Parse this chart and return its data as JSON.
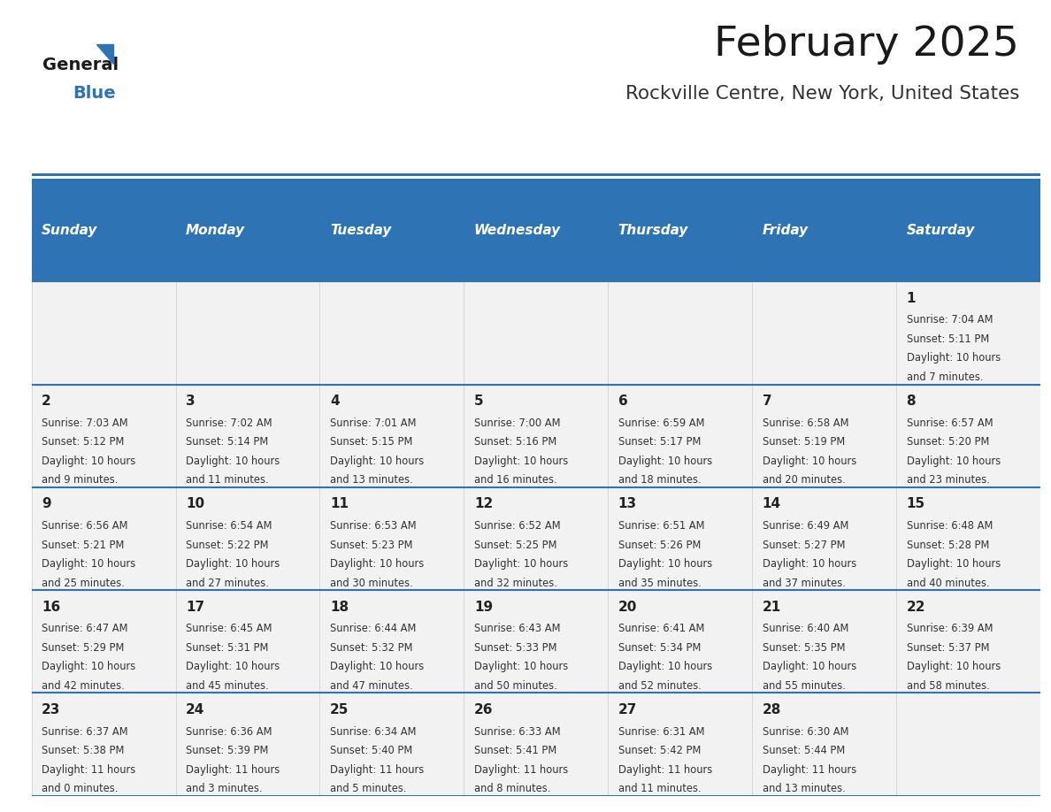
{
  "title": "February 2025",
  "subtitle": "Rockville Centre, New York, United States",
  "days_of_week": [
    "Sunday",
    "Monday",
    "Tuesday",
    "Wednesday",
    "Thursday",
    "Friday",
    "Saturday"
  ],
  "header_bg": "#2E74B5",
  "header_text": "#FFFFFF",
  "cell_bg_light": "#F2F2F2",
  "divider_color": "#2E74B5",
  "grid_line_color": "#CCCCCC",
  "text_color": "#333333",
  "weeks": [
    [
      {
        "day": null
      },
      {
        "day": null
      },
      {
        "day": null
      },
      {
        "day": null
      },
      {
        "day": null
      },
      {
        "day": null
      },
      {
        "day": 1,
        "sunrise": "7:04 AM",
        "sunset": "5:11 PM",
        "daylight": "10 hours and 7 minutes"
      }
    ],
    [
      {
        "day": 2,
        "sunrise": "7:03 AM",
        "sunset": "5:12 PM",
        "daylight": "10 hours and 9 minutes"
      },
      {
        "day": 3,
        "sunrise": "7:02 AM",
        "sunset": "5:14 PM",
        "daylight": "10 hours and 11 minutes"
      },
      {
        "day": 4,
        "sunrise": "7:01 AM",
        "sunset": "5:15 PM",
        "daylight": "10 hours and 13 minutes"
      },
      {
        "day": 5,
        "sunrise": "7:00 AM",
        "sunset": "5:16 PM",
        "daylight": "10 hours and 16 minutes"
      },
      {
        "day": 6,
        "sunrise": "6:59 AM",
        "sunset": "5:17 PM",
        "daylight": "10 hours and 18 minutes"
      },
      {
        "day": 7,
        "sunrise": "6:58 AM",
        "sunset": "5:19 PM",
        "daylight": "10 hours and 20 minutes"
      },
      {
        "day": 8,
        "sunrise": "6:57 AM",
        "sunset": "5:20 PM",
        "daylight": "10 hours and 23 minutes"
      }
    ],
    [
      {
        "day": 9,
        "sunrise": "6:56 AM",
        "sunset": "5:21 PM",
        "daylight": "10 hours and 25 minutes"
      },
      {
        "day": 10,
        "sunrise": "6:54 AM",
        "sunset": "5:22 PM",
        "daylight": "10 hours and 27 minutes"
      },
      {
        "day": 11,
        "sunrise": "6:53 AM",
        "sunset": "5:23 PM",
        "daylight": "10 hours and 30 minutes"
      },
      {
        "day": 12,
        "sunrise": "6:52 AM",
        "sunset": "5:25 PM",
        "daylight": "10 hours and 32 minutes"
      },
      {
        "day": 13,
        "sunrise": "6:51 AM",
        "sunset": "5:26 PM",
        "daylight": "10 hours and 35 minutes"
      },
      {
        "day": 14,
        "sunrise": "6:49 AM",
        "sunset": "5:27 PM",
        "daylight": "10 hours and 37 minutes"
      },
      {
        "day": 15,
        "sunrise": "6:48 AM",
        "sunset": "5:28 PM",
        "daylight": "10 hours and 40 minutes"
      }
    ],
    [
      {
        "day": 16,
        "sunrise": "6:47 AM",
        "sunset": "5:29 PM",
        "daylight": "10 hours and 42 minutes"
      },
      {
        "day": 17,
        "sunrise": "6:45 AM",
        "sunset": "5:31 PM",
        "daylight": "10 hours and 45 minutes"
      },
      {
        "day": 18,
        "sunrise": "6:44 AM",
        "sunset": "5:32 PM",
        "daylight": "10 hours and 47 minutes"
      },
      {
        "day": 19,
        "sunrise": "6:43 AM",
        "sunset": "5:33 PM",
        "daylight": "10 hours and 50 minutes"
      },
      {
        "day": 20,
        "sunrise": "6:41 AM",
        "sunset": "5:34 PM",
        "daylight": "10 hours and 52 minutes"
      },
      {
        "day": 21,
        "sunrise": "6:40 AM",
        "sunset": "5:35 PM",
        "daylight": "10 hours and 55 minutes"
      },
      {
        "day": 22,
        "sunrise": "6:39 AM",
        "sunset": "5:37 PM",
        "daylight": "10 hours and 58 minutes"
      }
    ],
    [
      {
        "day": 23,
        "sunrise": "6:37 AM",
        "sunset": "5:38 PM",
        "daylight": "11 hours and 0 minutes"
      },
      {
        "day": 24,
        "sunrise": "6:36 AM",
        "sunset": "5:39 PM",
        "daylight": "11 hours and 3 minutes"
      },
      {
        "day": 25,
        "sunrise": "6:34 AM",
        "sunset": "5:40 PM",
        "daylight": "11 hours and 5 minutes"
      },
      {
        "day": 26,
        "sunrise": "6:33 AM",
        "sunset": "5:41 PM",
        "daylight": "11 hours and 8 minutes"
      },
      {
        "day": 27,
        "sunrise": "6:31 AM",
        "sunset": "5:42 PM",
        "daylight": "11 hours and 11 minutes"
      },
      {
        "day": 28,
        "sunrise": "6:30 AM",
        "sunset": "5:44 PM",
        "daylight": "11 hours and 13 minutes"
      },
      {
        "day": null
      }
    ]
  ]
}
